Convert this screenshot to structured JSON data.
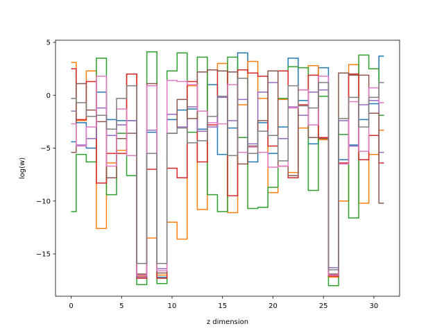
{
  "chart_data": {
    "type": "line",
    "drawstyle": "steps-mid",
    "title": "",
    "xlabel": "z dimension",
    "ylabel": "log(w)",
    "xlim": [
      -1.55,
      32.55
    ],
    "ylim": [
      -19.0,
      5.2
    ],
    "xticks": [
      0,
      5,
      10,
      15,
      20,
      25,
      30
    ],
    "yticks": [
      -15,
      -10,
      -5,
      0,
      5
    ],
    "grid": false,
    "legend": "none",
    "x": [
      0,
      1,
      2,
      3,
      4,
      5,
      6,
      7,
      8,
      9,
      10,
      11,
      12,
      13,
      14,
      15,
      16,
      17,
      18,
      19,
      20,
      21,
      22,
      23,
      24,
      25,
      26,
      27,
      28,
      29,
      30,
      31
    ],
    "series": [
      {
        "color": "#1f77b4",
        "values": [
          -4.4,
          -2.6,
          -5.0,
          0.3,
          -2.3,
          -2.4,
          -2.4,
          -17.0,
          -3.5,
          -17.2,
          -2.3,
          -1.4,
          -1.3,
          -3.2,
          1.0,
          -5.6,
          -3.1,
          4.0,
          -6.3,
          -2.6,
          -5.5,
          -3.0,
          3.5,
          -0.5,
          -4.6,
          2.6,
          -17.0,
          -6.1,
          -4.7,
          -2.3,
          -0.8,
          3.7
        ]
      },
      {
        "color": "#ff7f0e",
        "values": [
          3.1,
          -2.4,
          2.3,
          -12.6,
          -6.4,
          -5.2,
          2.0,
          -17.1,
          -13.5,
          -17.0,
          -12.0,
          -13.6,
          0.9,
          -10.8,
          2.4,
          3.0,
          -11.1,
          -0.9,
          3.2,
          -0.3,
          -9.2,
          -0.4,
          -7.3,
          -3.1,
          2.8,
          -4.2,
          -17.2,
          -10.0,
          2.9,
          -10.2,
          -5.6,
          -3.3
        ]
      },
      {
        "color": "#2ca02c",
        "values": [
          -11.0,
          -5.6,
          -6.3,
          3.5,
          -9.4,
          -3.6,
          -7.6,
          -17.9,
          4.1,
          -17.8,
          2.3,
          4.0,
          -3.5,
          3.6,
          -9.4,
          -11.0,
          3.6,
          -4.0,
          -10.7,
          -10.6,
          -8.7,
          -0.3,
          2.7,
          2.6,
          -9.0,
          -0.1,
          -18.0,
          -3.7,
          -11.6,
          3.8,
          2.5,
          -1.9
        ]
      },
      {
        "color": "#d62728",
        "values": [
          2.5,
          -2.3,
          1.3,
          -8.3,
          -5.5,
          -5.5,
          2.0,
          -17.3,
          -7.0,
          -17.3,
          -6.9,
          -7.8,
          1.3,
          -6.3,
          -2.8,
          2.3,
          -9.5,
          2.4,
          2.1,
          1.8,
          -4.8,
          2.3,
          -7.8,
          -0.9,
          1.9,
          -4.0,
          -17.1,
          -6.4,
          2.0,
          -6.1,
          -3.8,
          -6.4
        ]
      },
      {
        "color": "#9467bd",
        "values": [
          -1.5,
          -4.7,
          -4.1,
          -1.2,
          -3.8,
          -2.8,
          -2.4,
          -17.2,
          -3.3,
          -16.4,
          -1.8,
          -3.0,
          -1.1,
          -3.4,
          -3.0,
          -0.2,
          -2.4,
          -0.4,
          -4.6,
          0.3,
          1.2,
          -4.1,
          -1.1,
          -1.9,
          0.3,
          0.5,
          -16.3,
          -2.4,
          -4.8,
          -0.9,
          -0.5,
          -5.4
        ]
      },
      {
        "color": "#8c564b",
        "values": [
          -5.4,
          1.1,
          -1.4,
          -2.5,
          -7.8,
          -4.1,
          -3.6,
          -16.9,
          1.1,
          -16.8,
          -3.6,
          -0.4,
          -2.2,
          2.2,
          2.4,
          2.3,
          2.2,
          -6.5,
          -4.8,
          -2.4,
          2.3,
          -6.7,
          -7.6,
          0.5,
          -4.0,
          -4.1,
          -16.9,
          2.1,
          1.9,
          1.9,
          -1.7,
          -10.2
        ]
      },
      {
        "color": "#e377c2",
        "values": [
          -2.7,
          -4.8,
          -3.0,
          1.8,
          -6.7,
          -1.3,
          -5.7,
          -17.0,
          0.9,
          -16.6,
          1.4,
          1.3,
          1.0,
          -1.5,
          -2.6,
          -2.7,
          1.0,
          -5.4,
          -4.9,
          -5.4,
          -6.8,
          -6.7,
          -1.2,
          0.5,
          -2.8,
          1.8,
          -17.0,
          -6.5,
          -0.6,
          -5.3,
          0.7,
          -0.7
        ]
      },
      {
        "color": "#7f7f7f",
        "values": [
          -0.3,
          -0.7,
          -2.0,
          -1.9,
          -3.2,
          -0.3,
          0.9,
          -15.9,
          -5.5,
          -15.9,
          -3.6,
          -3.1,
          -4.5,
          -4.3,
          -2.0,
          -0.1,
          -5.7,
          1.6,
          -5.5,
          -3.4,
          -3.8,
          -6.2,
          0.9,
          -1.0,
          -1.2,
          1.2,
          -16.5,
          -2.2,
          -0.2,
          -3.0,
          -0.2,
          1.2
        ]
      }
    ]
  }
}
